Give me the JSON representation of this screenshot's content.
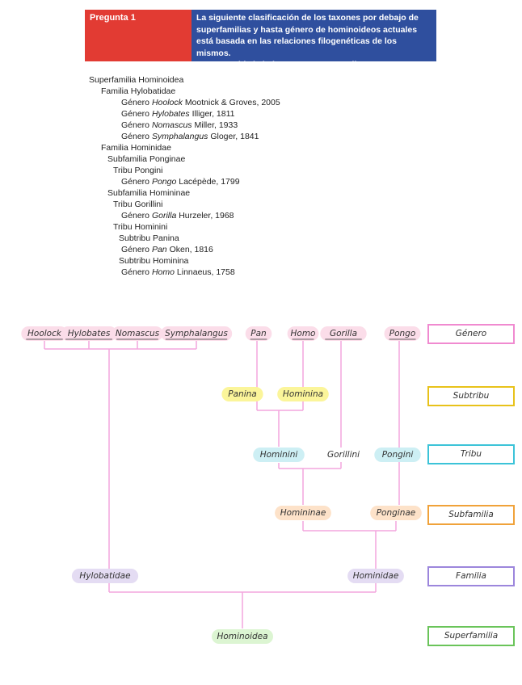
{
  "header": {
    "title": "Pregunta 1",
    "question": [
      "La siguiente clasificación de los taxones por debajo de",
      "superfamilias y hasta género de hominoideos actuales",
      "está basada en las relaciones filogenéticas de los mismos.",
      "Reconstruid el cladograma correspondiente."
    ]
  },
  "taxonomy": [
    {
      "text": "Superfamilia Hominoidea"
    },
    {
      "text": "Familia Hylobatidae"
    },
    {
      "rank": "Género",
      "genus": "Hoolock",
      "author": "Mootnick & Groves, 2005"
    },
    {
      "rank": "Género",
      "genus": "Hylobates",
      "author": "Illiger, 1811"
    },
    {
      "rank": "Género",
      "genus": "Nomascus",
      "author": "Miller, 1933"
    },
    {
      "rank": "Género",
      "genus": "Symphalangus",
      "author": "Gloger, 1841"
    },
    {
      "text": "Familia Hominidae"
    },
    {
      "text": "Subfamilia Ponginae"
    },
    {
      "text": "Tribu Pongini"
    },
    {
      "rank": "Género",
      "genus": "Pongo",
      "author": "Lacépède, 1799"
    },
    {
      "text": "Subfamilia Homininae"
    },
    {
      "text": "Tribu Gorillini"
    },
    {
      "rank": "Género",
      "genus": "Gorilla",
      "author": "Hurzeler, 1968"
    },
    {
      "text": "Tribu Hominini"
    },
    {
      "text": "Subtribu Panina"
    },
    {
      "rank": "Género",
      "genus": "Pan",
      "author": "Oken, 1816"
    },
    {
      "text": "Subtribu Hominina"
    },
    {
      "rank": "Género",
      "genus": "Homo",
      "author": "Linnaeus, 1758"
    }
  ],
  "cladogram": {
    "genera": [
      "Hoolock",
      "Hylobates",
      "Nomascus",
      "Symphalangus",
      "Pan",
      "Homo",
      "Gorilla",
      "Pongo"
    ],
    "subtribes": [
      "Panina",
      "Hominina"
    ],
    "tribes": [
      "Hominini",
      "Gorillini",
      "Pongini"
    ],
    "subfamilies": [
      "Homininae",
      "Ponginae"
    ],
    "families": [
      "Hylobatidae",
      "Hominidae"
    ],
    "superfamily": "Hominoidea",
    "ranks": [
      "Género",
      "Subtribu",
      "Tribu",
      "Subfamilia",
      "Familia",
      "Superfamilia"
    ]
  }
}
